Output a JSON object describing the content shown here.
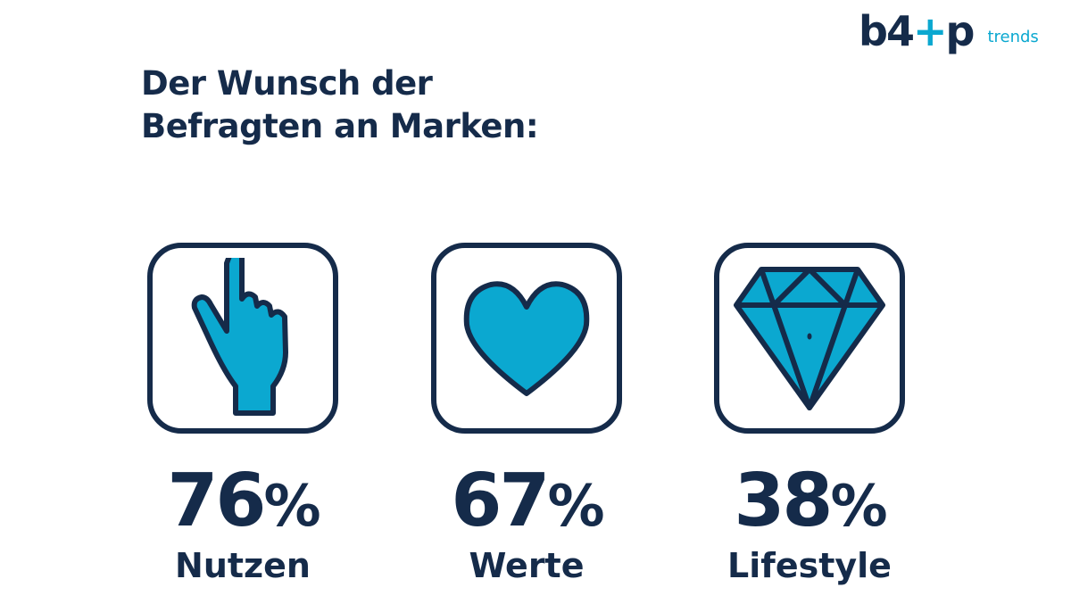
{
  "logo": {
    "mark_before": "b4",
    "mark_after": "p",
    "subtitle": "trends"
  },
  "title": {
    "line1": "Der Wunsch der",
    "line2": "Befragten an Marken:"
  },
  "colors": {
    "navy": "#152b4a",
    "accent": "#0ba8d0"
  },
  "items": [
    {
      "icon": "pointing-hand-icon",
      "value": "76",
      "unit": "%",
      "label": "Nutzen"
    },
    {
      "icon": "heart-icon",
      "value": "67",
      "unit": "%",
      "label": "Werte"
    },
    {
      "icon": "diamond-icon",
      "value": "38",
      "unit": "%",
      "label": "Lifestyle"
    }
  ]
}
